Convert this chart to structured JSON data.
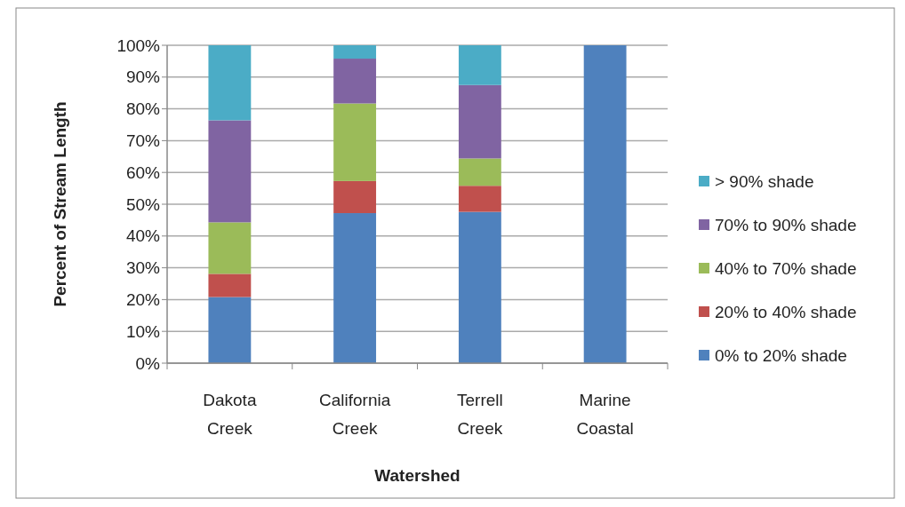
{
  "chart_data": {
    "type": "bar",
    "stacked": true,
    "xlabel": "Watershed",
    "ylabel": "Percent of Stream Length",
    "categories": [
      "Dakota Creek",
      "California Creek",
      "Terrell Creek",
      "Marine Coastal"
    ],
    "series": [
      {
        "name": "0% to 20% shade",
        "color": "#4f81bd",
        "values": [
          20.8,
          47.2,
          47.6,
          100
        ]
      },
      {
        "name": "20% to 40% shade",
        "color": "#c0504d",
        "values": [
          7.3,
          10.1,
          8.2,
          0
        ]
      },
      {
        "name": "40% to 70% shade",
        "color": "#9bbb59",
        "values": [
          16.2,
          24.4,
          8.6,
          0
        ]
      },
      {
        "name": "70% to 90% shade",
        "color": "#8064a2",
        "values": [
          32.1,
          14.1,
          23.1,
          0
        ]
      },
      {
        "name": "> 90% shade",
        "color": "#4bacc6",
        "values": [
          23.6,
          4.2,
          12.5,
          0
        ]
      }
    ],
    "ylim": [
      0,
      100
    ],
    "yticks": [
      {
        "value": 0,
        "label": "0%"
      },
      {
        "value": 10,
        "label": "10%"
      },
      {
        "value": 20,
        "label": "20%"
      },
      {
        "value": 30,
        "label": "30%"
      },
      {
        "value": 40,
        "label": "40%"
      },
      {
        "value": 50,
        "label": "50%"
      },
      {
        "value": 60,
        "label": "60%"
      },
      {
        "value": 70,
        "label": "70%"
      },
      {
        "value": 80,
        "label": "80%"
      },
      {
        "value": 90,
        "label": "90%"
      },
      {
        "value": 100,
        "label": "100%"
      }
    ],
    "grid": "y",
    "legend": "right"
  }
}
